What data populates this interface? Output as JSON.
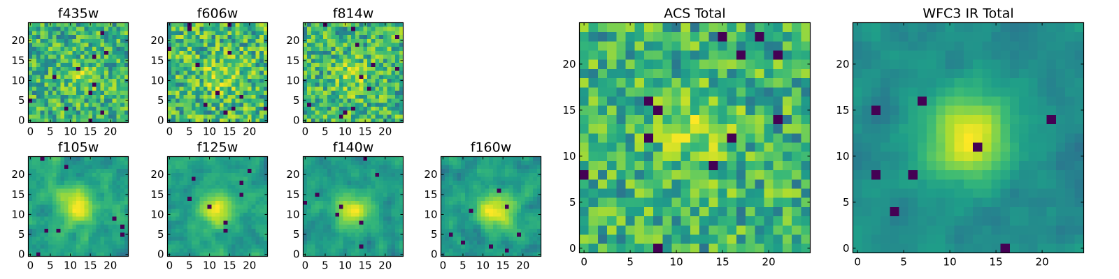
{
  "palette": [
    "#440154",
    "#31688e",
    "#26828e",
    "#1f9e89",
    "#35b779",
    "#6ece58",
    "#b5de2b",
    "#fde725"
  ],
  "chart_data": [
    {
      "type": "heatmap",
      "title": "f435w",
      "xticks": [
        0,
        5,
        10,
        15,
        20
      ],
      "yticks": [
        0,
        5,
        10,
        15,
        20
      ],
      "grid_size": 25,
      "center": [
        13,
        11
      ],
      "blob_strength": 0.3,
      "noise": 0.9,
      "smooth": 0,
      "seed": 11
    },
    {
      "type": "heatmap",
      "title": "f606w",
      "xticks": [
        0,
        5,
        10,
        15,
        20
      ],
      "yticks": [
        0,
        5,
        10,
        15,
        20
      ],
      "grid_size": 25,
      "center": [
        13,
        11
      ],
      "blob_strength": 0.3,
      "noise": 0.9,
      "smooth": 0,
      "seed": 23
    },
    {
      "type": "heatmap",
      "title": "f814w",
      "xticks": [
        0,
        5,
        10,
        15,
        20
      ],
      "yticks": [
        0,
        5,
        10,
        15,
        20
      ],
      "grid_size": 25,
      "center": [
        12,
        11
      ],
      "blob_strength": 0.35,
      "noise": 0.9,
      "smooth": 0,
      "seed": 37
    },
    {
      "type": "heatmap",
      "title": "f105w",
      "xticks": [
        0,
        5,
        10,
        15,
        20
      ],
      "yticks": [
        0,
        5,
        10,
        15,
        20
      ],
      "grid_size": 25,
      "center": [
        12,
        12
      ],
      "blob_strength": 0.8,
      "noise": 0.8,
      "smooth": 1,
      "seed": 41
    },
    {
      "type": "heatmap",
      "title": "f125w",
      "xticks": [
        0,
        5,
        10,
        15,
        20
      ],
      "yticks": [
        0,
        5,
        10,
        15,
        20
      ],
      "grid_size": 25,
      "center": [
        12,
        11
      ],
      "blob_strength": 0.8,
      "noise": 0.8,
      "smooth": 1,
      "seed": 53
    },
    {
      "type": "heatmap",
      "title": "f140w",
      "xticks": [
        0,
        5,
        10,
        15,
        20
      ],
      "yticks": [
        0,
        5,
        10,
        15,
        20
      ],
      "grid_size": 25,
      "center": [
        12,
        11
      ],
      "blob_strength": 0.8,
      "noise": 0.8,
      "smooth": 1,
      "seed": 67
    },
    {
      "type": "heatmap",
      "title": "f160w",
      "xticks": [
        0,
        5,
        10,
        15,
        20
      ],
      "yticks": [
        0,
        5,
        10,
        15,
        20
      ],
      "grid_size": 25,
      "center": [
        13,
        11
      ],
      "blob_strength": 0.9,
      "noise": 0.8,
      "smooth": 1,
      "seed": 79
    },
    {
      "type": "heatmap",
      "title": "ACS Total",
      "xticks": [
        0,
        5,
        10,
        15,
        20
      ],
      "yticks": [
        0,
        5,
        10,
        15,
        20
      ],
      "grid_size": 25,
      "center": [
        12,
        13
      ],
      "blob_strength": 0.4,
      "noise": 0.9,
      "smooth": 0,
      "seed": 97
    },
    {
      "type": "heatmap",
      "title": "WFC3 IR Total",
      "xticks": [
        0,
        5,
        10,
        15,
        20
      ],
      "yticks": [
        0,
        5,
        10,
        15,
        20
      ],
      "grid_size": 25,
      "center": [
        12,
        12
      ],
      "blob_strength": 1.6,
      "noise": 0.7,
      "smooth": 1,
      "seed": 113
    }
  ]
}
